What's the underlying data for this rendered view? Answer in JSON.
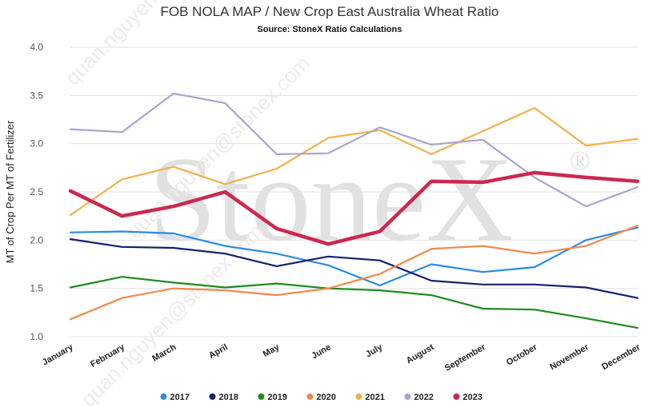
{
  "chart_data": {
    "type": "line",
    "title": "FOB NOLA MAP / New Crop East Australia Wheat Ratio",
    "subtitle": "Source: StoneX Ratio Calculations",
    "xlabel": "",
    "ylabel": "MT of Crop Per MT of Fertilizer",
    "ylim": [
      1.0,
      4.0
    ],
    "yticks": [
      "1.0",
      "1.5",
      "2.0",
      "2.5",
      "3.0",
      "3.5",
      "4.0"
    ],
    "grid": true,
    "legend_position": "bottom",
    "categories": [
      "January",
      "February",
      "March",
      "April",
      "May",
      "June",
      "July",
      "August",
      "September",
      "October",
      "November",
      "December"
    ],
    "series": [
      {
        "name": "2017",
        "color": "#2b8ae6",
        "values": [
          2.08,
          2.09,
          2.07,
          1.94,
          1.86,
          1.74,
          1.53,
          1.75,
          1.67,
          1.72,
          2.0,
          2.13
        ]
      },
      {
        "name": "2018",
        "color": "#14206e",
        "values": [
          2.01,
          1.93,
          1.92,
          1.86,
          1.73,
          1.83,
          1.79,
          1.58,
          1.54,
          1.54,
          1.51,
          1.4
        ]
      },
      {
        "name": "2019",
        "color": "#1f8a1f",
        "values": [
          1.51,
          1.62,
          1.56,
          1.51,
          1.55,
          1.5,
          1.48,
          1.43,
          1.29,
          1.28,
          1.19,
          1.09
        ]
      },
      {
        "name": "2020",
        "color": "#f0894f",
        "values": [
          1.18,
          1.4,
          1.5,
          1.48,
          1.43,
          1.5,
          1.65,
          1.91,
          1.94,
          1.86,
          1.94,
          2.15
        ]
      },
      {
        "name": "2021",
        "color": "#f0b24f",
        "values": [
          2.26,
          2.63,
          2.76,
          2.58,
          2.74,
          3.06,
          3.14,
          2.89,
          3.13,
          3.37,
          2.98,
          3.05
        ]
      },
      {
        "name": "2022",
        "color": "#a7a7cc",
        "values": [
          3.15,
          3.12,
          3.52,
          3.42,
          2.89,
          2.9,
          3.17,
          2.99,
          3.04,
          2.65,
          2.35,
          2.55
        ]
      },
      {
        "name": "2023",
        "color": "#cc2850",
        "values": [
          2.51,
          2.25,
          2.35,
          2.5,
          2.12,
          1.96,
          2.09,
          2.61,
          2.6,
          2.7,
          2.65,
          2.61
        ]
      }
    ]
  },
  "watermark": {
    "logo_text": "StoneX",
    "registered_mark": "®",
    "emails": [
      "quan.nguyen@stonex.com",
      "quan.nguyen@stonex.com",
      "quan.nguyen@stonex.com"
    ]
  }
}
